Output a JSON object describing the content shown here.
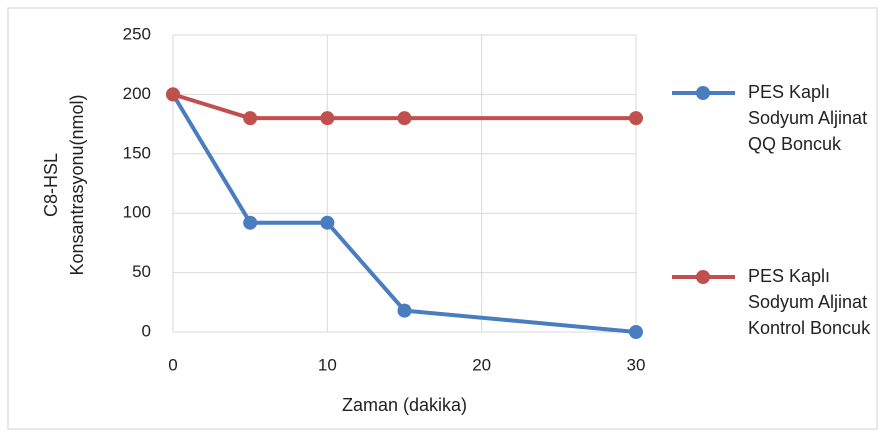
{
  "chart_data": {
    "type": "line",
    "x_label": "Zaman (dakika)",
    "y_label": "C8-HSL Konsantrasyonu(nmol)",
    "x": [
      0,
      5,
      10,
      15,
      30
    ],
    "series": [
      {
        "name": "PES Kaplı Sodyum Aljinat QQ Boncuk",
        "color": "#4a7dc0",
        "values": [
          200,
          92,
          92,
          18,
          0
        ]
      },
      {
        "name": "PES Kaplı Sodyum Aljinat Kontrol Boncuk",
        "color": "#c0504d",
        "values": [
          200,
          180,
          180,
          180,
          180
        ]
      }
    ],
    "xlim": [
      0,
      30
    ],
    "xticks": [
      0,
      10,
      20,
      30
    ],
    "ylim": [
      0,
      250
    ],
    "yticks": [
      0,
      50,
      100,
      150,
      200,
      250
    ],
    "grid": true,
    "legend": "right"
  }
}
